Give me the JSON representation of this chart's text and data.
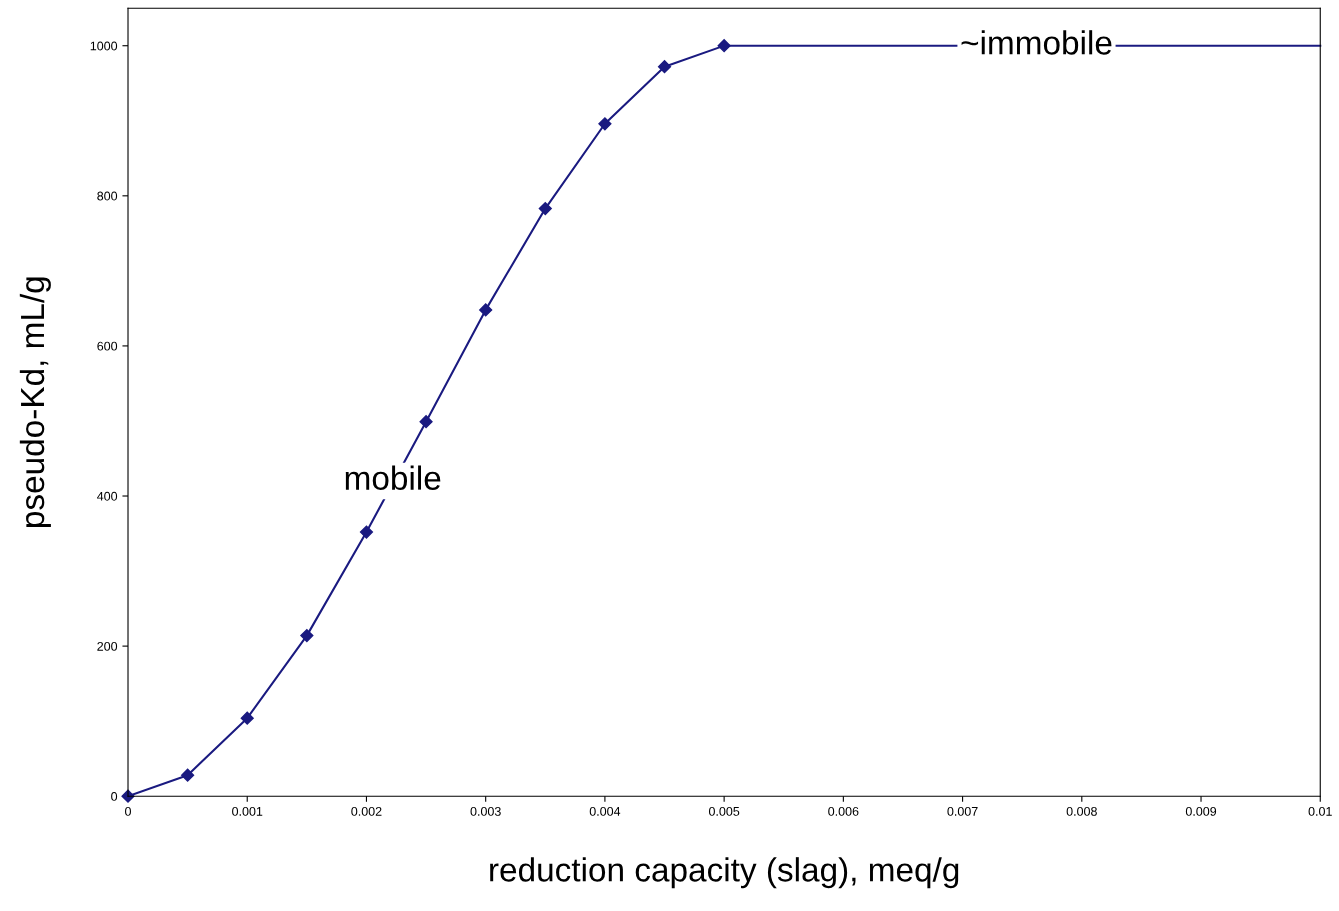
{
  "chart_data": {
    "type": "line",
    "xlabel": "reduction capacity (slag), meq/g",
    "ylabel": "pseudo-Kd, mL/g",
    "series": [
      {
        "color": "#1a1a80",
        "marker": "diamond",
        "x": [
          0,
          0.0005,
          0.001,
          0.0015,
          0.002,
          0.0025,
          0.003,
          0.0035,
          0.004,
          0.0045,
          0.005
        ],
        "values": [
          0,
          28,
          104,
          214,
          352,
          499,
          648,
          783,
          896,
          972,
          1000
        ]
      },
      {
        "color": "#1a1a80",
        "marker": "none",
        "x": [
          0.005,
          0.01
        ],
        "values": [
          1000,
          1000
        ]
      }
    ],
    "xlim": [
      0,
      0.01
    ],
    "xticks": [
      0,
      0.001,
      0.002,
      0.003,
      0.004,
      0.005,
      0.006,
      0.007,
      0.008,
      0.009,
      0.01
    ],
    "ylim": [
      0,
      1050
    ],
    "yticks": [
      0,
      200,
      400,
      600,
      800,
      1000
    ],
    "grid": false,
    "legend": false,
    "line_style": "solid",
    "annotations": [
      {
        "text": "mobile",
        "x": 0.00222,
        "y": 420
      },
      {
        "text": "~immobile",
        "x": 0.00762,
        "y": 1000
      }
    ]
  }
}
